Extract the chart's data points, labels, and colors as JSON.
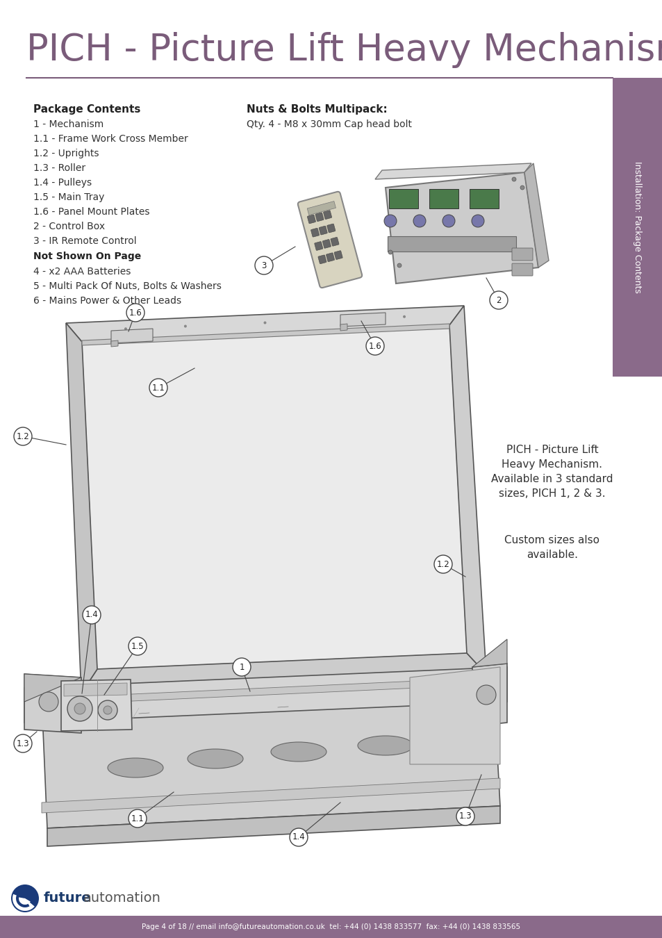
{
  "title": "PICH - Picture Lift Heavy Mechanism",
  "title_color": "#7a5c7a",
  "header_line_color": "#7a5c7a",
  "bg_color": "#ffffff",
  "sidebar_color": "#8a6a8a",
  "sidebar_text": "Installation: Package Contents",
  "footer_bg": "#8a6a8a",
  "footer_text": "Page 4 of 18 // email info@futureautomation.co.uk  tel: +44 (0) 1438 833577  fax: +44 (0) 1438 833565",
  "footer_text_color": "#ffffff",
  "package_contents_bold": "Package Contents",
  "package_items": [
    "1 - Mechanism",
    "1.1 - Frame Work Cross Member",
    "1.2 - Uprights",
    "1.3 - Roller",
    "1.4 - Pulleys",
    "1.5 - Main Tray",
    "1.6 - Panel Mount Plates",
    "2 - Control Box",
    "3 - IR Remote Control"
  ],
  "not_shown_bold": "Not Shown On Page",
  "not_shown_items": [
    "4 - x2 AAA Batteries",
    "5 - Multi Pack Of Nuts, Bolts & Washers",
    "6 - Mains Power & Other Leads"
  ],
  "nuts_bolts_bold": "Nuts & Bolts Multipack:",
  "nuts_bolts_detail": "Qty. 4 - M8 x 30mm Cap head bolt",
  "description_text": "PICH - Picture Lift\nHeavy Mechanism.\nAvailable in 3 standard\nsizes, PICH 1, 2 & 3.",
  "custom_sizes_text": "Custom sizes also\navailable.",
  "text_color": "#333333",
  "dark_text": "#222222",
  "label_circle_color": "#ffffff",
  "label_circle_edge": "#444444",
  "logo_future_color": "#1a3a6b",
  "logo_automation_color": "#555555",
  "line_color": "#555555",
  "frame_light": "#e0e0e0",
  "frame_mid": "#c8c8c8",
  "frame_dark": "#aaaaaa",
  "frame_inner": "#f0f0f0"
}
